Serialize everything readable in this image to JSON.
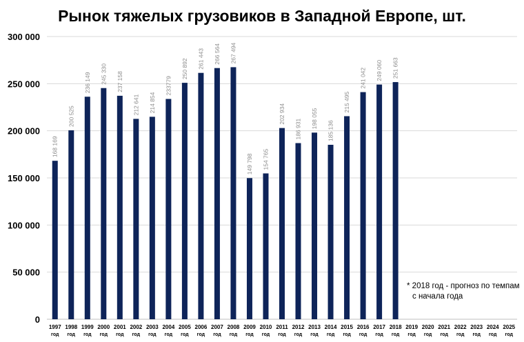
{
  "chart_data": {
    "type": "bar",
    "title": "Рынок тяжелых грузовиков в Западной Европе, шт.",
    "categories": [
      "1997",
      "1998",
      "1999",
      "2000",
      "2001",
      "2002",
      "2003",
      "2004",
      "2005",
      "2006",
      "2007",
      "2008",
      "2009",
      "2010",
      "2011",
      "2012",
      "2013",
      "2014",
      "2015",
      "2016",
      "2017",
      "2018",
      "2019",
      "2020",
      "2021",
      "2022",
      "2023",
      "2024",
      "2025"
    ],
    "category_suffix": "год",
    "values": [
      168169,
      200525,
      236149,
      245330,
      237158,
      212641,
      214854,
      233779,
      250892,
      261443,
      266564,
      267494,
      149798,
      154765,
      202934,
      186931,
      198055,
      185136,
      215495,
      241042,
      249060,
      251663,
      null,
      null,
      null,
      null,
      null,
      null,
      null
    ],
    "data_labels": [
      "168 169",
      "200 525",
      "236 149",
      "245 330",
      "237 158",
      "212 641",
      "214 854",
      "233779",
      "250 892",
      "261 443",
      "266 564",
      "267 494",
      "149 798",
      "154 765",
      "202 934",
      "186 931",
      "198 055",
      "185 136",
      "215 495",
      "241 042",
      "249 060",
      "251 663",
      "",
      "",
      "",
      "",
      "",
      "",
      ""
    ],
    "yticks": [
      0,
      50000,
      100000,
      150000,
      200000,
      250000,
      300000
    ],
    "ytick_labels": [
      "0",
      "50 000",
      "100 000",
      "150 000",
      "200 000",
      "250 000",
      "300 000"
    ],
    "ylim": [
      0,
      300000
    ],
    "grid": true,
    "legend": "none",
    "colors": {
      "bar": "#0E2459",
      "grid": "#D9D9D9",
      "data_label": "#8C8C8C"
    },
    "note": [
      "* 2018 год - прогноз по темпам",
      "с начала года"
    ]
  }
}
